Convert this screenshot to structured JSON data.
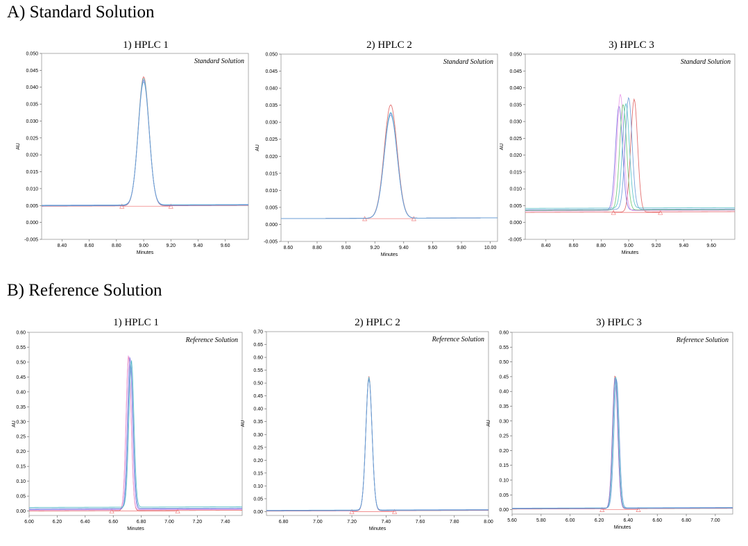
{
  "sections": [
    {
      "label": "A) Standard Solution"
    },
    {
      "label": "B) Reference Solution"
    }
  ],
  "chart_data": [
    {
      "type": "line",
      "title": "1) HPLC 1",
      "annotation": "Standard Solution",
      "xlabel": "Minutes",
      "ylabel": "AU",
      "xlim": [
        8.25,
        9.77
      ],
      "ylim": [
        -0.005,
        0.05
      ],
      "xticks": [
        "8.40",
        "8.60",
        "8.80",
        "9.00",
        "9.20",
        "9.40",
        "9.60"
      ],
      "yticks": [
        "-0.005",
        "0.000",
        "0.005",
        "0.010",
        "0.015",
        "0.020",
        "0.025",
        "0.030",
        "0.035",
        "0.040",
        "0.045",
        "0.050"
      ],
      "integration_markers": [
        8.84,
        9.2
      ],
      "integration_baseline": 0.0048,
      "series": [
        {
          "color": "#e06060",
          "peak_x": 9.0,
          "peak_y": 0.043,
          "width": 0.04,
          "baseline": 0.0048
        },
        {
          "color": "#7a6ee0",
          "peak_x": 9.0,
          "peak_y": 0.042,
          "width": 0.04,
          "baseline": 0.0049
        },
        {
          "color": "#55c0c8",
          "peak_x": 9.0,
          "peak_y": 0.0425,
          "width": 0.04,
          "baseline": 0.005
        },
        {
          "color": "#6a9ad8",
          "peak_x": 9.0,
          "peak_y": 0.0415,
          "width": 0.04,
          "baseline": 0.0051
        }
      ]
    },
    {
      "type": "line",
      "title": "2) HPLC 2",
      "annotation": "Standard Solution",
      "xlabel": "Minutes",
      "ylabel": "AU",
      "xlim": [
        8.55,
        10.05
      ],
      "ylim": [
        -0.005,
        0.05
      ],
      "xticks": [
        "8.60",
        "8.80",
        "9.00",
        "9.20",
        "9.40",
        "9.60",
        "9.80",
        "10.00"
      ],
      "yticks": [
        "-0.005",
        "0.000",
        "0.005",
        "0.010",
        "0.015",
        "0.020",
        "0.025",
        "0.030",
        "0.035",
        "0.040",
        "0.045",
        "0.050"
      ],
      "integration_markers": [
        9.13,
        9.47
      ],
      "integration_baseline": 0.0017,
      "series": [
        {
          "color": "#e06060",
          "peak_x": 9.31,
          "peak_y": 0.035,
          "width": 0.045,
          "baseline": 0.0017
        },
        {
          "color": "#7a6ee0",
          "peak_x": 9.31,
          "peak_y": 0.0325,
          "width": 0.045,
          "baseline": 0.0017
        },
        {
          "color": "#55c0c8",
          "peak_x": 9.31,
          "peak_y": 0.0328,
          "width": 0.045,
          "baseline": 0.0017
        },
        {
          "color": "#6a9ad8",
          "peak_x": 9.31,
          "peak_y": 0.032,
          "width": 0.045,
          "baseline": 0.0017
        }
      ]
    },
    {
      "type": "line",
      "title": "3) HPLC 3",
      "annotation": "Standard Solution",
      "xlabel": "Minutes",
      "ylabel": "AU",
      "xlim": [
        8.25,
        9.77
      ],
      "ylim": [
        -0.005,
        0.05
      ],
      "xticks": [
        "8.40",
        "8.60",
        "8.80",
        "9.00",
        "9.20",
        "9.40",
        "9.60"
      ],
      "yticks": [
        "-0.005",
        "0.000",
        "0.005",
        "0.010",
        "0.015",
        "0.020",
        "0.025",
        "0.030",
        "0.035",
        "0.040",
        "0.045",
        "0.050"
      ],
      "integration_markers": [
        8.89,
        9.23
      ],
      "integration_baseline": 0.003,
      "series": [
        {
          "color": "#e06060",
          "peak_x": 9.04,
          "peak_y": 0.0365,
          "width": 0.025,
          "baseline": 0.003
        },
        {
          "color": "#7a6ee0",
          "peak_x": 8.93,
          "peak_y": 0.0345,
          "width": 0.025,
          "baseline": 0.0036
        },
        {
          "color": "#e898e8",
          "peak_x": 8.94,
          "peak_y": 0.038,
          "width": 0.025,
          "baseline": 0.0034
        },
        {
          "color": "#70c870",
          "peak_x": 8.96,
          "peak_y": 0.035,
          "width": 0.025,
          "baseline": 0.0036
        },
        {
          "color": "#6a9ad8",
          "peak_x": 9.0,
          "peak_y": 0.037,
          "width": 0.025,
          "baseline": 0.0038
        },
        {
          "color": "#55c0c8",
          "peak_x": 8.98,
          "peak_y": 0.0352,
          "width": 0.025,
          "baseline": 0.0042
        }
      ]
    },
    {
      "type": "line",
      "title": "1) HPLC 1",
      "annotation": "Reference Solution",
      "xlabel": "Minutes",
      "ylabel": "AU",
      "xlim": [
        6.0,
        7.52
      ],
      "ylim": [
        -0.015,
        0.6
      ],
      "xticks": [
        "6.00",
        "6.20",
        "6.40",
        "6.60",
        "6.80",
        "7.00",
        "7.20",
        "7.40"
      ],
      "yticks": [
        "0.00",
        "0.05",
        "0.10",
        "0.15",
        "0.20",
        "0.25",
        "0.30",
        "0.35",
        "0.40",
        "0.45",
        "0.50",
        "0.55",
        "0.60"
      ],
      "integration_markers": [
        6.59,
        7.06
      ],
      "integration_baseline": 0.0,
      "series": [
        {
          "color": "#e06060",
          "peak_x": 6.71,
          "peak_y": 0.52,
          "width": 0.018,
          "baseline": 0.0
        },
        {
          "color": "#e898e8",
          "peak_x": 6.71,
          "peak_y": 0.525,
          "width": 0.018,
          "baseline": 0.003
        },
        {
          "color": "#7a6ee0",
          "peak_x": 6.72,
          "peak_y": 0.515,
          "width": 0.018,
          "baseline": 0.005
        },
        {
          "color": "#6a9ad8",
          "peak_x": 6.725,
          "peak_y": 0.5,
          "width": 0.018,
          "baseline": 0.008
        },
        {
          "color": "#55c0c8",
          "peak_x": 6.73,
          "peak_y": 0.505,
          "width": 0.018,
          "baseline": 0.012
        }
      ]
    },
    {
      "type": "line",
      "title": "2) HPLC 2",
      "annotation": "Reference Solution",
      "xlabel": "Minutes",
      "ylabel": "AU",
      "xlim": [
        6.7,
        8.0
      ],
      "ylim": [
        -0.015,
        0.7
      ],
      "xticks": [
        "6.80",
        "7.00",
        "7.20",
        "7.40",
        "7.60",
        "7.80",
        "8.00"
      ],
      "yticks": [
        "0.00",
        "0.05",
        "0.10",
        "0.15",
        "0.20",
        "0.25",
        "0.30",
        "0.35",
        "0.40",
        "0.45",
        "0.50",
        "0.55",
        "0.60",
        "0.65",
        "0.70"
      ],
      "integration_markers": [
        7.2,
        7.45
      ],
      "integration_baseline": 0.0,
      "series": [
        {
          "color": "#e06060",
          "peak_x": 7.3,
          "peak_y": 0.525,
          "width": 0.018,
          "baseline": 0.002
        },
        {
          "color": "#7a6ee0",
          "peak_x": 7.3,
          "peak_y": 0.52,
          "width": 0.018,
          "baseline": 0.003
        },
        {
          "color": "#55c0c8",
          "peak_x": 7.3,
          "peak_y": 0.522,
          "width": 0.018,
          "baseline": 0.004
        },
        {
          "color": "#6a9ad8",
          "peak_x": 7.3,
          "peak_y": 0.515,
          "width": 0.018,
          "baseline": 0.005
        }
      ]
    },
    {
      "type": "line",
      "title": "3) HPLC 3",
      "annotation": "Reference Solution",
      "xlabel": "Minutes",
      "ylabel": "AU",
      "xlim": [
        5.6,
        7.12
      ],
      "ylim": [
        -0.015,
        0.6
      ],
      "xticks": [
        "5.60",
        "5.80",
        "6.00",
        "6.20",
        "6.40",
        "6.60",
        "6.80",
        "7.00"
      ],
      "yticks": [
        "0.00",
        "0.05",
        "0.10",
        "0.15",
        "0.20",
        "0.25",
        "0.30",
        "0.35",
        "0.40",
        "0.45",
        "0.50",
        "0.55",
        "0.60"
      ],
      "integration_markers": [
        6.22,
        6.47
      ],
      "integration_baseline": 0.0,
      "series": [
        {
          "color": "#e06060",
          "peak_x": 6.31,
          "peak_y": 0.455,
          "width": 0.018,
          "baseline": 0.002
        },
        {
          "color": "#7a6ee0",
          "peak_x": 6.31,
          "peak_y": 0.448,
          "width": 0.018,
          "baseline": 0.003
        },
        {
          "color": "#55c0c8",
          "peak_x": 6.315,
          "peak_y": 0.45,
          "width": 0.018,
          "baseline": 0.004
        },
        {
          "color": "#6a9ad8",
          "peak_x": 6.32,
          "peak_y": 0.44,
          "width": 0.018,
          "baseline": 0.005
        }
      ]
    }
  ]
}
